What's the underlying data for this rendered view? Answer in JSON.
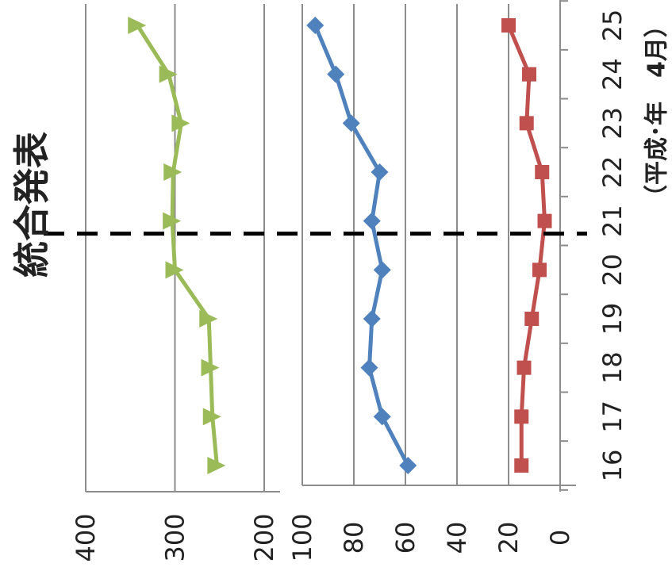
{
  "chart_data": [
    {
      "type": "line",
      "x": [
        "16",
        "17",
        "18",
        "19",
        "20",
        "21",
        "22",
        "23",
        "24",
        "25"
      ],
      "xlabel": "（平成･年　4月）",
      "ylim": [
        200,
        400
      ],
      "yticks": [
        "200",
        "300",
        "400"
      ],
      "grid": true,
      "series": [
        {
          "values": [
            253,
            258,
            260,
            262,
            300,
            303,
            302,
            293,
            307,
            342
          ],
          "color": "#9bbb59",
          "marker": "triangle"
        }
      ]
    },
    {
      "type": "line",
      "x": [
        "16",
        "17",
        "18",
        "19",
        "20",
        "21",
        "22",
        "23",
        "24",
        "25"
      ],
      "xlabel": "（平成･年　4月）",
      "ylim": [
        0,
        100
      ],
      "yticks": [
        "0",
        "20",
        "40",
        "60",
        "80",
        "100"
      ],
      "grid": true,
      "series": [
        {
          "values": [
            59,
            69,
            74,
            73,
            69,
            73,
            70,
            81,
            87,
            95
          ],
          "color": "#4f81bd",
          "marker": "diamond"
        },
        {
          "values": [
            15,
            15,
            14,
            11,
            8,
            6,
            7,
            13,
            12,
            20
          ],
          "color": "#c0504d",
          "marker": "square"
        }
      ]
    }
  ],
  "annotation": {
    "label": "統合発表",
    "at": "21"
  }
}
